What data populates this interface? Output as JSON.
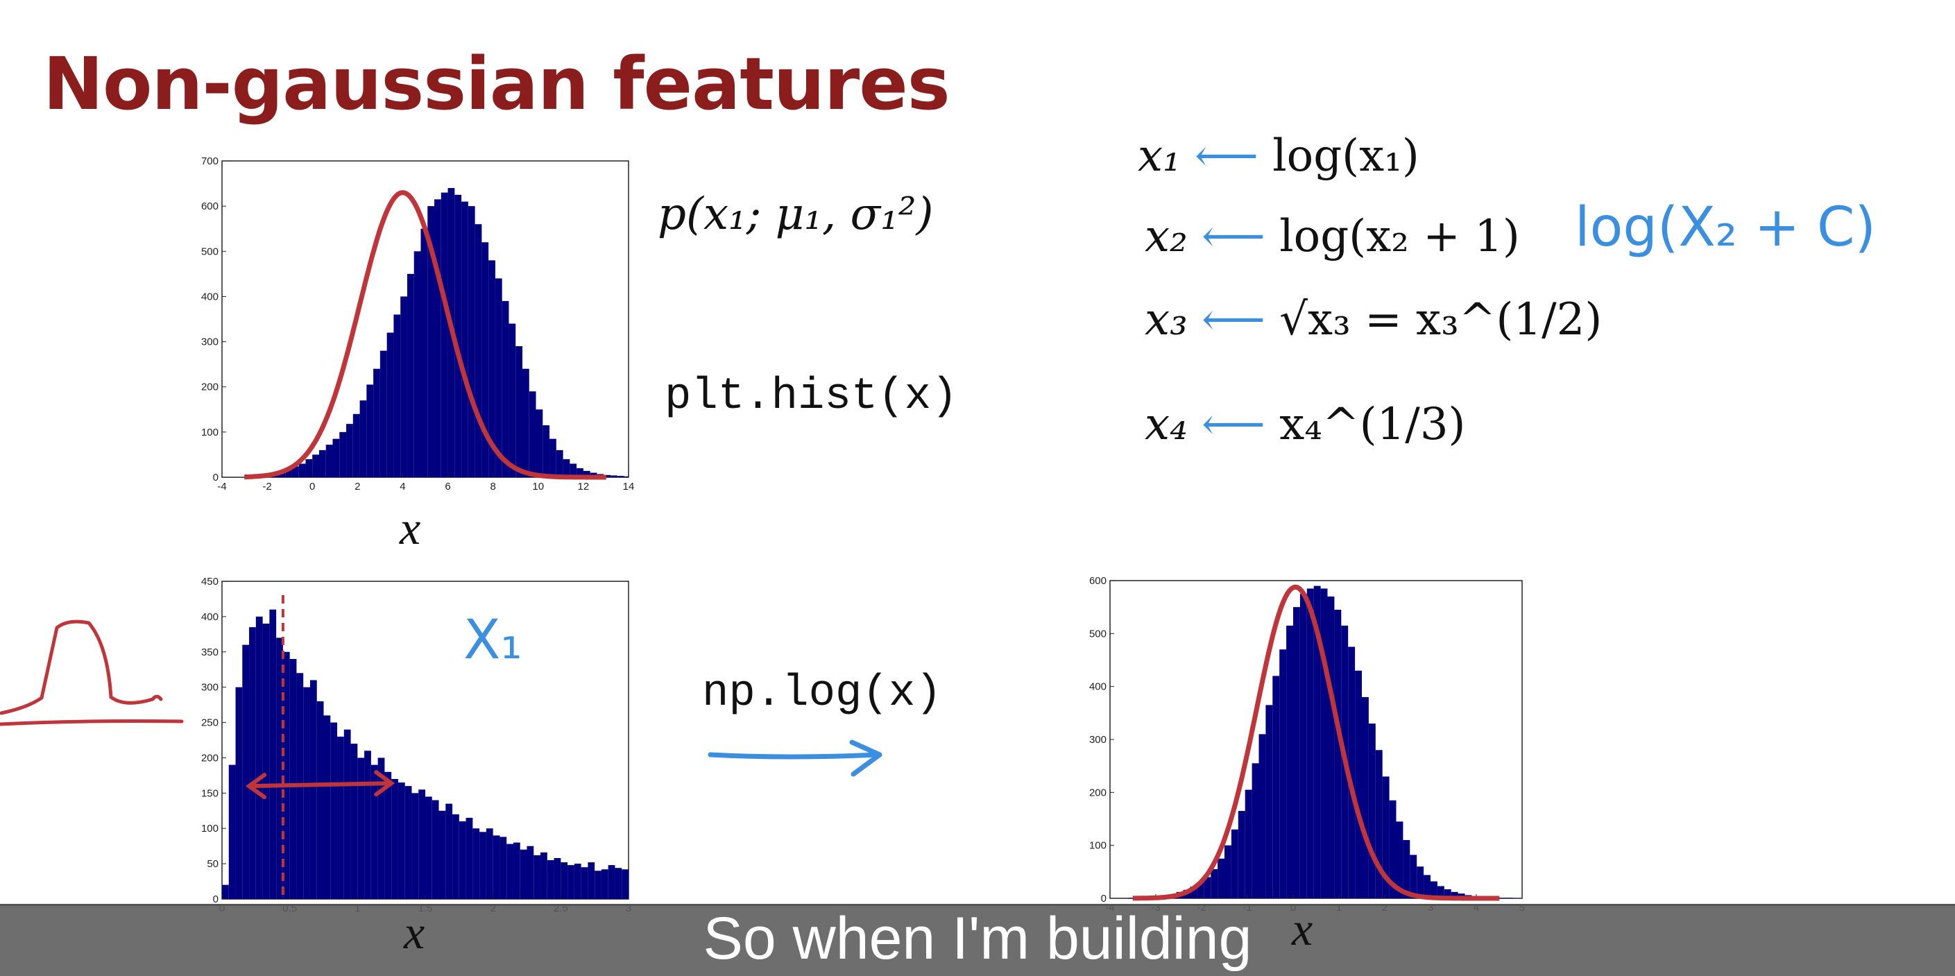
{
  "slide": {
    "title": "Non-gaussian features"
  },
  "annotations": {
    "gaussian_formula": "p(x₁; μ₁, σ₁²)",
    "hist_code": "plt.hist(x)",
    "log_code": "np.log(x)",
    "handwritten_x1": "X₁",
    "handwritten_log": "log(X₂ + C)"
  },
  "transforms": [
    {
      "lhs": "x₁",
      "rhs": "log(x₁)"
    },
    {
      "lhs": "x₂",
      "rhs": "log(x₂ + 1)"
    },
    {
      "lhs": "x₃",
      "rhs": "√x₃ = x₃^(1/2)"
    },
    {
      "lhs": "x₄",
      "rhs": "x₄^(1/3)"
    }
  ],
  "caption": {
    "text": "So when I'm building"
  },
  "colors": {
    "title": "#8b1d1d",
    "bars": "#000080",
    "fit": "#c0353a",
    "pen_blue": "#3b8fe0",
    "caption_bg": "#5a5a5a"
  },
  "chart_data": [
    {
      "type": "bar",
      "name": "histogram-gaussian",
      "xlabel": "x",
      "xlim": [
        -4,
        14
      ],
      "ylim": [
        0,
        700
      ],
      "xticks": [
        -4,
        -2,
        0,
        2,
        4,
        6,
        8,
        10,
        12,
        14
      ],
      "yticks": [
        0,
        100,
        200,
        300,
        400,
        500,
        600,
        700
      ],
      "bin_start": -3.0,
      "bin_width": 0.3,
      "values": [
        3,
        4,
        6,
        8,
        10,
        14,
        18,
        24,
        30,
        40,
        50,
        60,
        72,
        85,
        100,
        118,
        140,
        170,
        205,
        240,
        280,
        320,
        360,
        400,
        450,
        500,
        550,
        600,
        615,
        630,
        640,
        625,
        610,
        600,
        560,
        520,
        480,
        440,
        390,
        340,
        290,
        240,
        190,
        150,
        115,
        85,
        60,
        40,
        30,
        20,
        14,
        10,
        7,
        5,
        4,
        3,
        2,
        2,
        1,
        1
      ],
      "fit": {
        "mean": 4.0,
        "sd": 1.9,
        "peak": 630
      }
    },
    {
      "type": "bar",
      "name": "histogram-skewed",
      "xlabel": "x",
      "xlim": [
        0,
        3
      ],
      "ylim": [
        0,
        450
      ],
      "xticks": [
        0,
        0.5,
        1,
        1.5,
        2,
        2.5,
        3
      ],
      "yticks": [
        0,
        50,
        100,
        150,
        200,
        250,
        300,
        350,
        400,
        450
      ],
      "bin_start": 0.0,
      "bin_width": 0.05,
      "values": [
        20,
        190,
        300,
        360,
        385,
        400,
        390,
        410,
        370,
        350,
        340,
        320,
        300,
        310,
        280,
        260,
        250,
        230,
        240,
        220,
        200,
        210,
        190,
        200,
        180,
        170,
        165,
        160,
        150,
        155,
        145,
        140,
        125,
        135,
        120,
        110,
        115,
        100,
        95,
        100,
        90,
        88,
        78,
        80,
        70,
        75,
        62,
        66,
        55,
        58,
        52,
        48,
        50,
        45,
        52,
        40,
        42,
        48,
        44,
        42
      ]
    },
    {
      "type": "bar",
      "name": "histogram-log",
      "xlabel": "x",
      "xlim": [
        -4,
        5
      ],
      "ylim": [
        0,
        600
      ],
      "xticks": [
        -4,
        -3,
        -2,
        -1,
        0,
        1,
        2,
        3,
        4,
        5
      ],
      "yticks": [
        0,
        100,
        200,
        300,
        400,
        500,
        600
      ],
      "bin_start": -3.6,
      "bin_width": 0.15,
      "values": [
        1,
        2,
        2,
        3,
        5,
        6,
        8,
        12,
        16,
        22,
        30,
        40,
        55,
        75,
        100,
        130,
        165,
        205,
        255,
        310,
        365,
        420,
        470,
        515,
        550,
        575,
        585,
        590,
        585,
        570,
        545,
        515,
        475,
        430,
        380,
        330,
        280,
        230,
        185,
        145,
        110,
        82,
        60,
        44,
        32,
        23,
        17,
        12,
        9,
        6,
        4,
        3,
        2,
        2,
        1,
        1
      ],
      "fit": {
        "mean": 0.05,
        "sd": 0.85,
        "peak": 588
      }
    }
  ]
}
